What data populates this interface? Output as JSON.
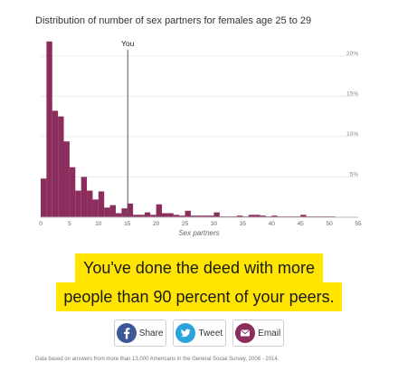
{
  "title": "Distribution of number of sex partners for females age 25 to 29",
  "marker_label": "You",
  "banner": {
    "line1": "You've done the deed with more",
    "line2": "people than 90 percent of your peers."
  },
  "share": {
    "facebook_label": "Share",
    "twitter_label": "Tweet",
    "email_label": "Email"
  },
  "footnote": "Data based on answers from more than 13,000 Americans in the General Social Survey, 2006 - 2014.",
  "colors": {
    "bar": "#8b2d5d",
    "highlight": "#ffe500",
    "facebook": "#3b5998",
    "twitter": "#2aa3dd",
    "email": "#8b2d5d"
  },
  "icons": [
    "facebook-icon",
    "twitter-icon",
    "email-icon"
  ],
  "chart_data": {
    "type": "bar",
    "title": "Distribution of number of sex partners for females age 25 to 29",
    "xlabel": "Sex partners",
    "ylabel": "",
    "x_ticks": [
      0,
      5,
      10,
      15,
      20,
      25,
      30,
      35,
      40,
      45,
      50,
      55
    ],
    "x_tick_labels": [
      "0",
      "5",
      "10",
      "15",
      "20",
      "25",
      "30",
      "35",
      "40",
      "45",
      "50",
      "55"
    ],
    "y_ticks": [
      5,
      10,
      15,
      20
    ],
    "y_tick_labels": [
      "5%",
      "10%",
      "15%",
      "20%"
    ],
    "xlim": [
      0,
      55
    ],
    "ylim": [
      0,
      22
    ],
    "grid": true,
    "marker": {
      "label": "You",
      "x": 15
    },
    "series": [
      {
        "x": [
          0,
          1,
          2,
          3,
          4,
          5,
          6,
          7,
          8,
          9,
          10,
          11,
          12,
          13,
          14,
          15,
          16,
          17,
          18,
          19,
          20,
          21,
          22,
          23,
          24,
          25,
          26,
          27,
          28,
          29,
          30,
          31,
          32,
          33,
          34,
          35,
          36,
          37,
          38,
          39,
          40,
          41,
          42,
          43,
          44,
          45,
          46,
          47,
          48,
          49,
          50
        ],
        "values": [
          4.8,
          21.8,
          13.2,
          12.5,
          9.4,
          6.2,
          3.3,
          5.0,
          3.3,
          2.2,
          3.2,
          1.2,
          1.5,
          0.5,
          1.1,
          1.7,
          0.3,
          0.3,
          0.6,
          0.3,
          1.6,
          0.5,
          0.5,
          0.3,
          0.2,
          0.8,
          0.2,
          0.2,
          0.2,
          0.2,
          0.6,
          0.1,
          0.1,
          0.1,
          0.2,
          0.1,
          0.3,
          0.3,
          0.2,
          0.1,
          0.2,
          0.1,
          0.1,
          0.1,
          0.1,
          0.3,
          0.1,
          0.1,
          0.1,
          0.1,
          0.1
        ]
      }
    ]
  }
}
